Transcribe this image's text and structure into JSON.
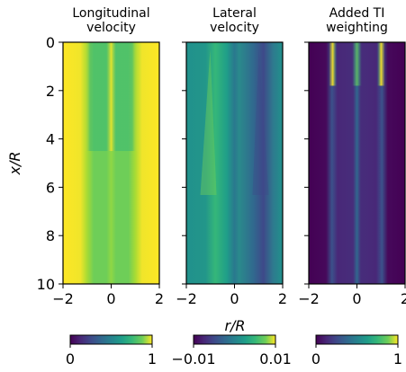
{
  "chart_data": [
    {
      "type": "heatmap",
      "title_lines": [
        "Longitudinal",
        "velocity"
      ],
      "ylabel": "x/R",
      "xlim": [
        -2,
        2
      ],
      "ylim": [
        10,
        0
      ],
      "xticks": [
        "−2",
        "0",
        "2"
      ],
      "yticks": [
        "0",
        "2",
        "4",
        "6",
        "8",
        "10"
      ],
      "colormap": "viridis",
      "colorbar": {
        "min": 0,
        "max": 1,
        "ticks": [
          "0",
          "1"
        ]
      }
    },
    {
      "type": "heatmap",
      "title_lines": [
        "Lateral",
        "velocity"
      ],
      "xlim": [
        -2,
        2
      ],
      "ylim": [
        10,
        0
      ],
      "xticks": [
        "−2",
        "0",
        "2"
      ],
      "colormap": "viridis",
      "colorbar": {
        "min": -0.01,
        "max": 0.01,
        "ticks": [
          "−0.01",
          "0.01"
        ]
      }
    },
    {
      "type": "heatmap",
      "title_lines": [
        "Added TI",
        "weighting"
      ],
      "xlim": [
        -2,
        2
      ],
      "ylim": [
        10,
        0
      ],
      "xticks": [
        "−2",
        "0",
        "2"
      ],
      "colormap": "viridis",
      "colorbar": {
        "min": 0,
        "max": 1,
        "ticks": [
          "0",
          "1"
        ]
      }
    }
  ],
  "shared": {
    "xlabel": "r/R"
  }
}
